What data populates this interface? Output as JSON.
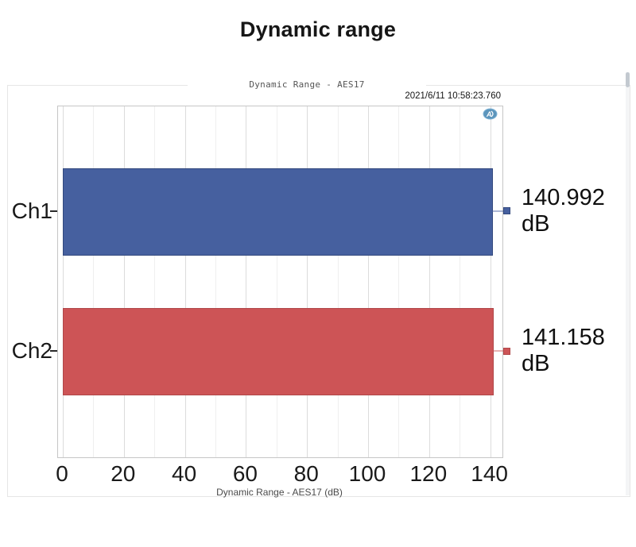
{
  "page_title": "Dynamic range",
  "chart": {
    "header_title": "Dynamic Range - AES17",
    "timestamp": "2021/6/11 10:58:23.760",
    "logo_text": "AP",
    "xlabel": "Dynamic Range - AES17 (dB)"
  },
  "chart_data": {
    "type": "bar",
    "orientation": "horizontal",
    "title": "Dynamic Range - AES17",
    "xlabel": "Dynamic Range - AES17 (dB)",
    "ylabel": "",
    "categories": [
      "Ch1",
      "Ch2"
    ],
    "values": [
      140.992,
      141.158
    ],
    "value_labels": [
      "140.992 dB",
      "141.158 dB"
    ],
    "series_colors": [
      "#46609f",
      "#cd5456"
    ],
    "series_border_colors": [
      "#33497e",
      "#b04749"
    ],
    "unit": "dB",
    "xlim": [
      0,
      144
    ],
    "xticks": [
      0,
      20,
      40,
      60,
      80,
      100,
      120,
      140
    ],
    "minor_tick_step": 10,
    "grid": "vertical",
    "legend_position": "right-of-bars"
  },
  "colors": {
    "major_grid": "#dcdcdc",
    "minor_grid": "#efefef",
    "plot_border": "#c6c6c6",
    "panel_border": "#e6e6e6",
    "logo_blue": "#4a8ab5"
  }
}
